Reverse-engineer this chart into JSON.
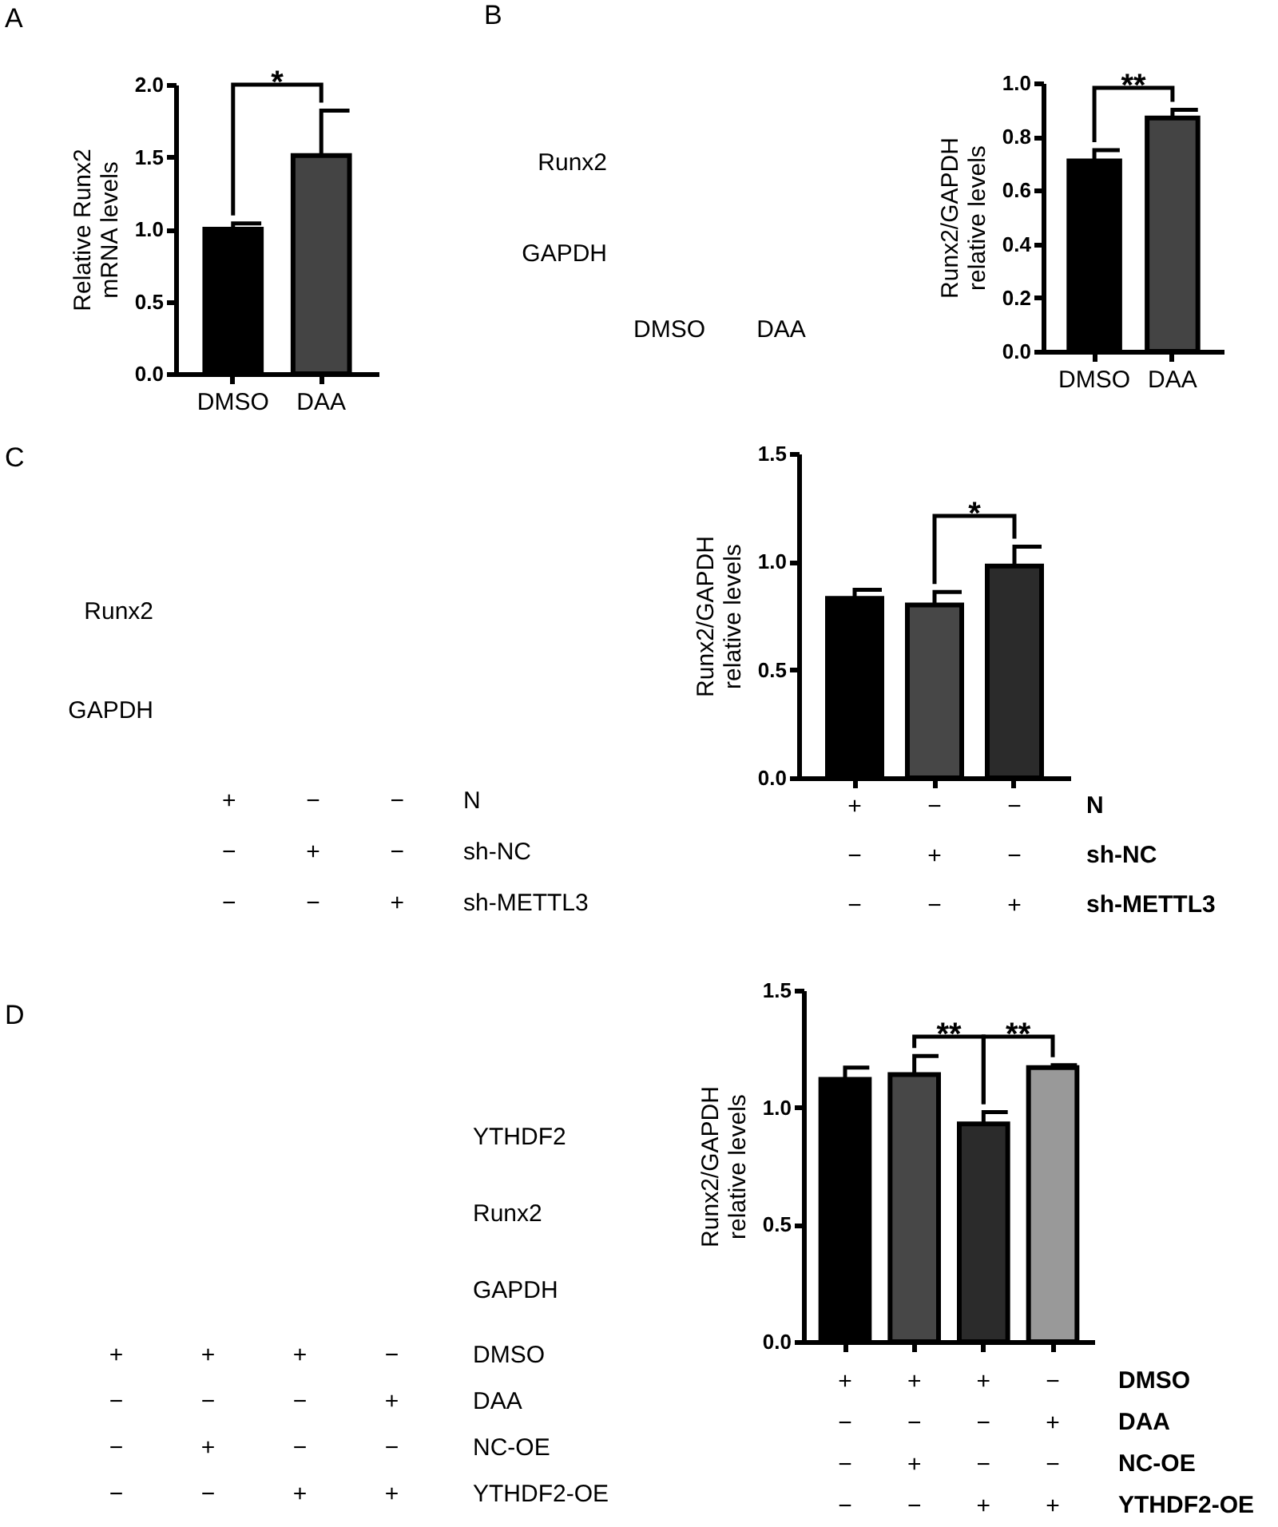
{
  "chart_data": [
    {
      "type": "bar",
      "title": "A",
      "categories": [
        "DMSO",
        "DAA"
      ],
      "values": [
        1.0,
        1.51
      ],
      "errors": [
        0.04,
        0.31
      ],
      "colors": [
        "#000000",
        "#444444"
      ],
      "ylabel": "Relative Runx2\nmRNA levels",
      "ylim": [
        0,
        2
      ],
      "yticks": [
        {
          "value": 0,
          "label": "0.0"
        },
        0.5,
        {
          "value": 1,
          "label": "1.0"
        },
        1.5,
        {
          "value": 2,
          "label": "2.0"
        }
      ],
      "annotations": [
        "*"
      ]
    },
    {
      "type": "other",
      "title": "B",
      "categories": [
        "DMSO",
        "DAA"
      ],
      "y_categories": [
        "Runx2",
        "GAPDH"
      ]
    },
    {
      "type": "bar",
      "categories": [
        "DMSO",
        "DAA"
      ],
      "values": [
        0.71,
        0.87
      ],
      "errors": [
        0.04,
        0.03
      ],
      "colors": [
        "#000000",
        "#444444"
      ],
      "ylabel": "Runx2/GAPDH\nrelative levels",
      "ylim": [
        0,
        1
      ],
      "yticks": [
        {
          "value": 0,
          "label": "0.0"
        },
        0.2,
        0.4,
        0.6,
        0.8,
        {
          "value": 1,
          "label": "1.0"
        }
      ],
      "annotations": [
        "**"
      ]
    },
    {
      "type": "other",
      "title": "C",
      "categories": [
        "+\n−\n−",
        "−\n+\n−",
        "−\n−\n+"
      ],
      "y_categories": [
        "Runx2",
        "GAPDH"
      ],
      "annotations": [
        "N",
        "sh-NC",
        "sh-METTL3"
      ]
    },
    {
      "type": "bar",
      "categories": [
        "+\n−\n−",
        "−\n+\n−",
        "−\n−\n+"
      ],
      "values": [
        0.83,
        0.8,
        0.98
      ],
      "errors": [
        0.04,
        0.06,
        0.09
      ],
      "colors": [
        "#000000",
        "#474747",
        "#2b2b2b"
      ],
      "ylabel": "Runx2/GAPDH\nrelative levels",
      "ylim": [
        0,
        1.5
      ],
      "yticks": [
        {
          "value": 0,
          "label": "0.0"
        },
        0.5,
        {
          "value": 1,
          "label": "1.0"
        },
        1.5
      ],
      "annotations": [
        "N",
        "sh-NC",
        "sh-METTL3",
        "*"
      ]
    },
    {
      "type": "other",
      "title": "D",
      "categories": [
        "+\n−\n−\n−",
        "+\n−\n+\n−",
        "+\n−\n−\n+",
        "−\n+\n−\n+"
      ],
      "y_categories": [
        "YTHDF2",
        "Runx2",
        "GAPDH"
      ],
      "annotations": [
        "DMSO",
        "DAA",
        "NC-OE",
        "YTHDF2-OE"
      ]
    },
    {
      "type": "bar",
      "categories": [
        "+\n−\n−\n−",
        "+\n−\n+\n−",
        "+\n−\n−\n+",
        "−\n+\n−\n+"
      ],
      "values": [
        1.12,
        1.14,
        0.93,
        1.17
      ],
      "errors": [
        0.05,
        0.08,
        0.05,
        0.01
      ],
      "colors": [
        "#000000",
        "#474747",
        "#2b2b2b",
        "#999999"
      ],
      "ylabel": "Runx2/GAPDH\nrelative levels",
      "ylim": [
        0,
        1.5
      ],
      "yticks": [
        {
          "value": 0,
          "label": "0.0"
        },
        0.5,
        {
          "value": 1,
          "label": "1.0"
        },
        1.5
      ],
      "annotations": [
        "DMSO",
        "DAA",
        "NC-OE",
        "YTHDF2-OE",
        "**",
        "**"
      ]
    }
  ]
}
